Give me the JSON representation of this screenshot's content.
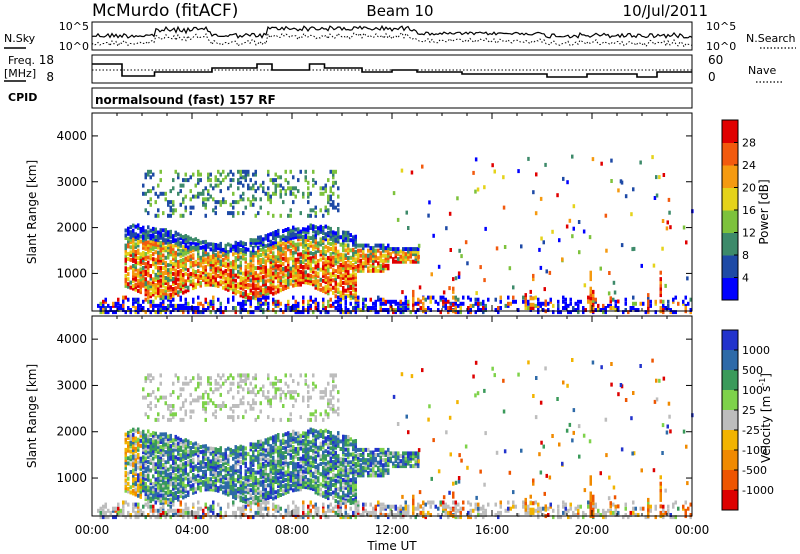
{
  "header": {
    "station": "McMurdo (fitACF)",
    "beam": "Beam 10",
    "date": "10/Jul/2011"
  },
  "top_panels": {
    "nsky": {
      "label": "N.Sky",
      "ticks": [
        "10^5",
        "10^0"
      ]
    },
    "nsearch": {
      "label": "N.Search",
      "ticks": [
        "10^5",
        "10^0"
      ]
    },
    "freq": {
      "label_line1": "Freq.",
      "label_line2": "[MHz]",
      "ticks": [
        "18",
        "8"
      ]
    },
    "nave": {
      "label": "Nave",
      "ticks": [
        "60",
        "0"
      ]
    },
    "cpid": {
      "label": "CPID",
      "value": "normalsound (fast) 157 RF"
    }
  },
  "chart_data": [
    {
      "type": "heatmap",
      "name": "power",
      "xlabel": "Time UT",
      "ylabel": "Slant Range [km]",
      "x_unit": "hours UT",
      "xlim": [
        0,
        24
      ],
      "ylim": [
        180,
        4500
      ],
      "x_ticks": [
        "00:00",
        "04:00",
        "08:00",
        "12:00",
        "16:00",
        "20:00",
        "00:00"
      ],
      "y_ticks": [
        1000,
        2000,
        3000,
        4000
      ],
      "colorbar": {
        "label": "Power [dB]",
        "ticks": [
          "4",
          "8",
          "12",
          "16",
          "20",
          "24",
          "28"
        ],
        "colors": [
          "#0000ff",
          "#1e4aa6",
          "#3d8a6a",
          "#7dc23c",
          "#e5d31a",
          "#f59a10",
          "#f25a0e",
          "#e00000"
        ]
      },
      "echo_regions": [
        {
          "t_start": 1.2,
          "t_end": 13.0,
          "range_min": 500,
          "range_max": 2100,
          "description_level": "high"
        },
        {
          "t_start": 2.0,
          "t_end": 9.5,
          "range_min": 2500,
          "range_max": 3300,
          "description_level": "low"
        }
      ]
    },
    {
      "type": "heatmap",
      "name": "velocity",
      "xlabel": "Time UT",
      "ylabel": "Slant Range [km]",
      "x_unit": "hours UT",
      "xlim": [
        0,
        24
      ],
      "ylim": [
        180,
        4500
      ],
      "x_ticks": [
        "00:00",
        "04:00",
        "08:00",
        "12:00",
        "16:00",
        "20:00",
        "00:00"
      ],
      "y_ticks": [
        1000,
        2000,
        3000,
        4000
      ],
      "colorbar": {
        "label": "Velocity [m s",
        "label_sup": "-1",
        "label_end": "]",
        "ticks": [
          "1000",
          "500",
          "100",
          "25",
          "-25",
          "-100",
          "-500",
          "-1000"
        ],
        "colors": [
          "#2233cc",
          "#2e6aa8",
          "#3a9a5a",
          "#7ed24a",
          "#bdbdbd",
          "#f2b400",
          "#f08a00",
          "#ee5500",
          "#dd0000"
        ]
      }
    }
  ]
}
